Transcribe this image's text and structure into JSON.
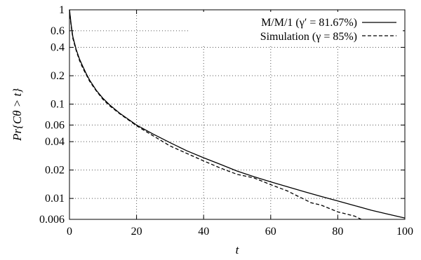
{
  "chart_data": {
    "type": "line",
    "xlabel": "t",
    "ylabel": "Pr{Cθ > t}",
    "xlim": [
      0,
      100
    ],
    "ylim": [
      0.006,
      1
    ],
    "y_scale": "log",
    "grid": true,
    "legend_position": "top-right",
    "x_ticks": [
      0,
      20,
      40,
      60,
      80,
      100
    ],
    "x_tick_labels": [
      "0",
      "20",
      "40",
      "60",
      "80",
      "100"
    ],
    "y_ticks": [
      1,
      0.6,
      0.4,
      0.2,
      0.1,
      0.06,
      0.04,
      0.02,
      0.01,
      0.006
    ],
    "y_tick_labels": [
      "1",
      "0.6",
      "0.4",
      "0.2",
      "0.1",
      "0.06",
      "0.04",
      "0.02",
      "0.01",
      "0.006"
    ],
    "series": [
      {
        "name": "M/M/1 (γ′ = 81.67%)",
        "style": "solid",
        "color": "#000000",
        "x": [
          0,
          0.5,
          1,
          2,
          3,
          4,
          5,
          6,
          8,
          10,
          12,
          15,
          20,
          25,
          30,
          35,
          40,
          45,
          50,
          55,
          60,
          65,
          70,
          75,
          80,
          85,
          90,
          95,
          100
        ],
        "y": [
          1,
          0.7,
          0.52,
          0.38,
          0.3,
          0.25,
          0.21,
          0.18,
          0.14,
          0.115,
          0.098,
          0.08,
          0.06,
          0.048,
          0.039,
          0.032,
          0.027,
          0.023,
          0.0195,
          0.017,
          0.015,
          0.0133,
          0.0118,
          0.0105,
          0.0094,
          0.0084,
          0.0075,
          0.0068,
          0.0062
        ]
      },
      {
        "name": "Simulation (γ = 85%)",
        "style": "dashed",
        "color": "#000000",
        "x": [
          0,
          0.5,
          1,
          2,
          3,
          4,
          5,
          6,
          8,
          10,
          12,
          15,
          20,
          25,
          30,
          35,
          40,
          45,
          50,
          55,
          60,
          65,
          68,
          70,
          72,
          75,
          80,
          85,
          87
        ],
        "y": [
          1,
          0.68,
          0.5,
          0.37,
          0.29,
          0.24,
          0.205,
          0.175,
          0.138,
          0.112,
          0.096,
          0.079,
          0.059,
          0.046,
          0.036,
          0.03,
          0.025,
          0.021,
          0.018,
          0.0165,
          0.014,
          0.012,
          0.0106,
          0.0098,
          0.009,
          0.0085,
          0.0072,
          0.0065,
          0.006
        ]
      }
    ]
  }
}
